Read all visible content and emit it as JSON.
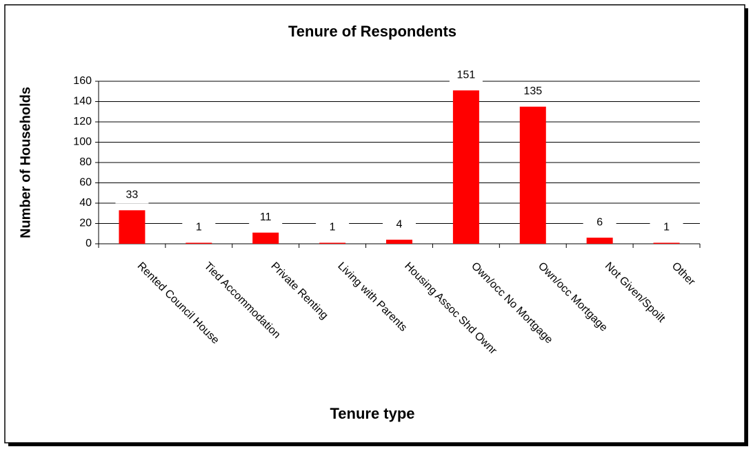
{
  "chart_data": {
    "type": "bar",
    "title": "Tenure of Respondents",
    "x_label": "Tenure type",
    "y_label": "Number of Households",
    "categories": [
      "Rented Council House",
      "Tied Accommodation",
      "Private Renting",
      "Living with Parents",
      "Housing Assoc Shd Ownr",
      "Own/occ No Mortgage",
      "Own/occ Mortgage",
      "Not Given/Spoilt",
      "Other"
    ],
    "values": [
      33,
      1,
      11,
      1,
      4,
      151,
      135,
      6,
      1
    ],
    "color": "#ff0000",
    "ylim": [
      0,
      160
    ],
    "yticks": [
      0,
      20,
      40,
      60,
      80,
      100,
      120,
      140,
      160
    ],
    "grid": true
  }
}
